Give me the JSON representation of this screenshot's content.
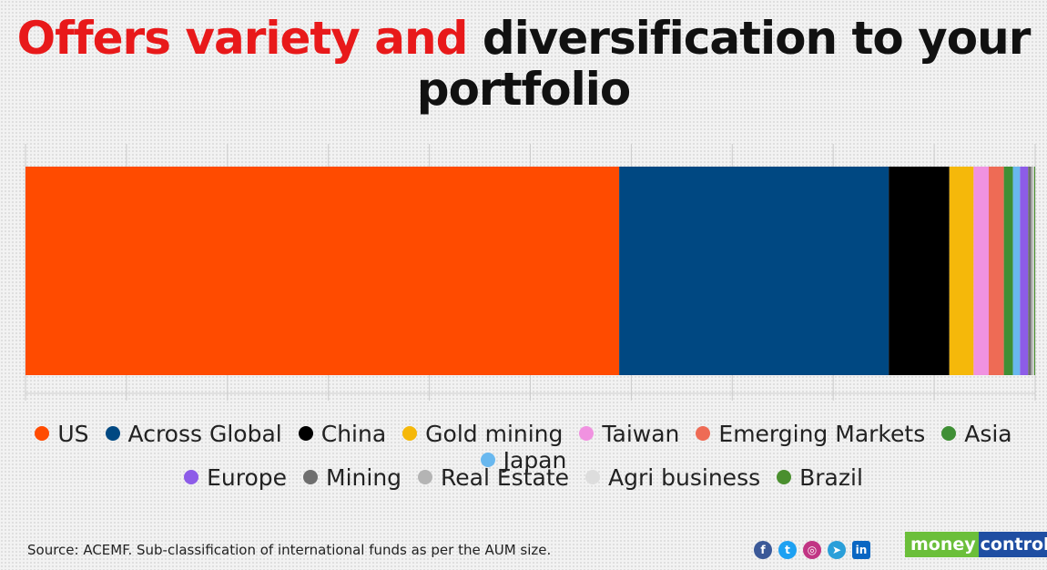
{
  "title": {
    "highlight": "Offers variety and",
    "rest": "diversification to your portfolio"
  },
  "chart_data": {
    "type": "bar",
    "orientation": "horizontal-stacked-100",
    "title": "Offers variety and diversification to your portfolio",
    "xlim": [
      0,
      100
    ],
    "grid": false,
    "legend_position": "bottom",
    "series": [
      {
        "name": "US",
        "value": 58.8,
        "color": "#ff4b00"
      },
      {
        "name": "Across Global",
        "value": 26.7,
        "color": "#004882"
      },
      {
        "name": "China",
        "value": 6.0,
        "color": "#000000"
      },
      {
        "name": "Gold mining",
        "value": 2.4,
        "color": "#f5b80a"
      },
      {
        "name": "Taiwan",
        "value": 1.5,
        "color": "#f092e0"
      },
      {
        "name": "Emerging Markets",
        "value": 1.5,
        "color": "#ee6b55"
      },
      {
        "name": "Asia",
        "value": 0.9,
        "color": "#3f8f35"
      },
      {
        "name": "Japan",
        "value": 0.7,
        "color": "#69b8ef"
      },
      {
        "name": "Europe",
        "value": 0.8,
        "color": "#8d5ce8"
      },
      {
        "name": "Mining",
        "value": 0.3,
        "color": "#6e6e6e"
      },
      {
        "name": "Real Estate",
        "value": 0.2,
        "color": "#b4b4b4"
      },
      {
        "name": "Agri business",
        "value": 0.1,
        "color": "#dddddd"
      },
      {
        "name": "Brazil",
        "value": 0.1,
        "color": "#4a8f2f"
      }
    ]
  },
  "source": "Source: ACEMF. Sub-classification of international funds as per the AUM size.",
  "social_icons": [
    {
      "name": "facebook-icon",
      "glyph": "f",
      "color": "#3b5998"
    },
    {
      "name": "twitter-icon",
      "glyph": "t",
      "color": "#1da1f2"
    },
    {
      "name": "instagram-icon",
      "glyph": "◎",
      "color": "#c13584"
    },
    {
      "name": "telegram-icon",
      "glyph": "➤",
      "color": "#2a9fd9"
    },
    {
      "name": "linkedin-icon",
      "glyph": "in",
      "color": "#0a66c2"
    }
  ],
  "brand": {
    "part1": "money",
    "part2": "control"
  }
}
